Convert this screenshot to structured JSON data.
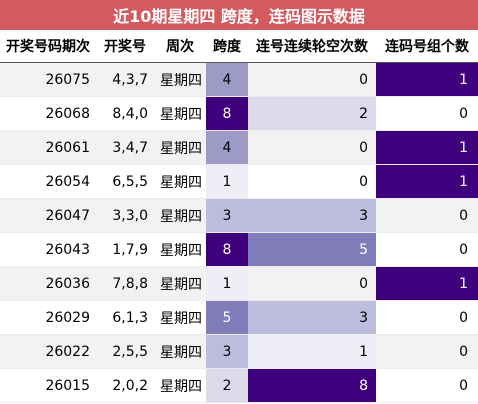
{
  "title": "近10期星期四 跨度，连码图示数据",
  "headers": [
    "开奖号码期次",
    "开奖号",
    "周次",
    "跨度",
    "连号连续轮空次数",
    "连码号组个数"
  ],
  "rows": [
    {
      "period": "26075",
      "numbers": "4,3,7",
      "weekday": "星期四",
      "span": "4",
      "gap_count": "0",
      "group_count": "1"
    },
    {
      "period": "26068",
      "numbers": "8,4,0",
      "weekday": "星期四",
      "span": "8",
      "gap_count": "2",
      "group_count": "0"
    },
    {
      "period": "26061",
      "numbers": "3,4,7",
      "weekday": "星期四",
      "span": "4",
      "gap_count": "0",
      "group_count": "1"
    },
    {
      "period": "26054",
      "numbers": "6,5,5",
      "weekday": "星期四",
      "span": "1",
      "gap_count": "0",
      "group_count": "1"
    },
    {
      "period": "26047",
      "numbers": "3,3,0",
      "weekday": "星期四",
      "span": "3",
      "gap_count": "3",
      "group_count": "0"
    },
    {
      "period": "26043",
      "numbers": "1,7,9",
      "weekday": "星期四",
      "span": "8",
      "gap_count": "5",
      "group_count": "0"
    },
    {
      "period": "26036",
      "numbers": "7,8,8",
      "weekday": "星期四",
      "span": "1",
      "gap_count": "0",
      "group_count": "1"
    },
    {
      "period": "26029",
      "numbers": "6,1,3",
      "weekday": "星期四",
      "span": "5",
      "gap_count": "3",
      "group_count": "0"
    },
    {
      "period": "26022",
      "numbers": "2,5,5",
      "weekday": "星期四",
      "span": "3",
      "gap_count": "1",
      "group_count": "0"
    },
    {
      "period": "26015",
      "numbers": "2,0,2",
      "weekday": "星期四",
      "span": "2",
      "gap_count": "8",
      "group_count": "0"
    }
  ],
  "colors": {
    "title_bg": "#d35a5e",
    "title_text": "#ffffff",
    "heat_max": "#3f007d",
    "heat_min": "#fcfbfd",
    "row_stripe": "#f2f2f2"
  }
}
